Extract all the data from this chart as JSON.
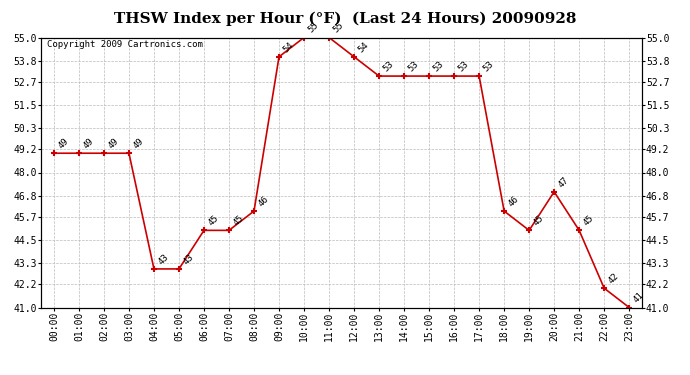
{
  "title": "THSW Index per Hour (°F)  (Last 24 Hours) 20090928",
  "copyright": "Copyright 2009 Cartronics.com",
  "hours": [
    0,
    1,
    2,
    3,
    4,
    5,
    6,
    7,
    8,
    9,
    10,
    11,
    12,
    13,
    14,
    15,
    16,
    17,
    18,
    19,
    20,
    21,
    22,
    23
  ],
  "values": [
    49,
    49,
    49,
    49,
    43,
    43,
    45,
    45,
    46,
    54,
    55,
    55,
    54,
    53,
    53,
    53,
    53,
    53,
    46,
    45,
    47,
    45,
    42,
    41
  ],
  "hour_labels": [
    "00:00",
    "01:00",
    "02:00",
    "03:00",
    "04:00",
    "05:00",
    "06:00",
    "07:00",
    "08:00",
    "09:00",
    "10:00",
    "11:00",
    "12:00",
    "13:00",
    "14:00",
    "15:00",
    "16:00",
    "17:00",
    "18:00",
    "19:00",
    "20:00",
    "21:00",
    "22:00",
    "23:00"
  ],
  "yticks": [
    41.0,
    42.2,
    43.3,
    44.5,
    45.7,
    46.8,
    48.0,
    49.2,
    50.3,
    51.5,
    52.7,
    53.8,
    55.0
  ],
  "ylim": [
    41.0,
    55.0
  ],
  "line_color": "#cc0000",
  "marker_color": "#cc0000",
  "bg_color": "#ffffff",
  "plot_bg_color": "#ffffff",
  "grid_color": "#bbbbbb",
  "title_fontsize": 11,
  "label_fontsize": 7,
  "annotation_fontsize": 6.5,
  "copyright_fontsize": 6.5
}
